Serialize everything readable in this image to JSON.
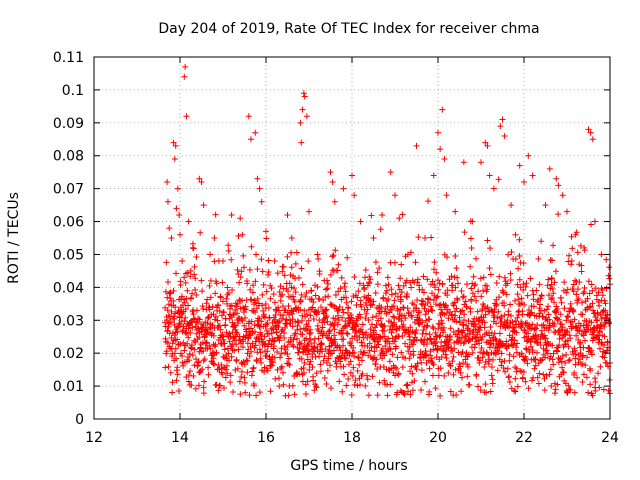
{
  "chart_data": {
    "type": "scatter",
    "title": "Day 204 of 2019, Rate Of TEC Index for receiver chma",
    "xlabel": "GPS time / hours",
    "ylabel": "ROTI / TECUs",
    "xlim": [
      12,
      24
    ],
    "ylim": [
      0,
      0.11
    ],
    "xticks": [
      "12",
      "14",
      "16",
      "18",
      "20",
      "22",
      "24"
    ],
    "yticks": [
      "0",
      "0.01",
      "0.02",
      "0.03",
      "0.04",
      "0.05",
      "0.06",
      "0.07",
      "0.08",
      "0.09",
      "0.1",
      "0.11"
    ],
    "grid": true,
    "marker": "+",
    "color": "#ff0000",
    "series": [
      {
        "name": "ROTI",
        "points": [
          [
            13.7,
            0.072
          ],
          [
            13.72,
            0.066
          ],
          [
            13.75,
            0.058
          ],
          [
            13.8,
            0.055
          ],
          [
            13.85,
            0.084
          ],
          [
            13.88,
            0.079
          ],
          [
            13.9,
            0.083
          ],
          [
            13.95,
            0.07
          ],
          [
            13.98,
            0.062
          ],
          [
            14.0,
            0.056
          ],
          [
            14.05,
            0.048
          ],
          [
            14.1,
            0.104
          ],
          [
            14.12,
            0.107
          ],
          [
            14.15,
            0.092
          ],
          [
            14.2,
            0.06
          ],
          [
            14.25,
            0.045
          ],
          [
            14.3,
            0.052
          ],
          [
            14.45,
            0.073
          ],
          [
            14.5,
            0.072
          ],
          [
            14.55,
            0.065
          ],
          [
            14.7,
            0.05
          ],
          [
            14.8,
            0.055
          ],
          [
            15.0,
            0.048
          ],
          [
            15.2,
            0.062
          ],
          [
            15.4,
            0.061
          ],
          [
            15.45,
            0.056
          ],
          [
            15.6,
            0.092
          ],
          [
            15.65,
            0.085
          ],
          [
            15.75,
            0.087
          ],
          [
            15.8,
            0.073
          ],
          [
            15.85,
            0.07
          ],
          [
            15.9,
            0.066
          ],
          [
            16.0,
            0.057
          ],
          [
            16.2,
            0.048
          ],
          [
            16.5,
            0.062
          ],
          [
            16.6,
            0.055
          ],
          [
            16.8,
            0.09
          ],
          [
            16.82,
            0.084
          ],
          [
            16.85,
            0.094
          ],
          [
            16.88,
            0.099
          ],
          [
            16.9,
            0.098
          ],
          [
            16.95,
            0.092
          ],
          [
            17.0,
            0.063
          ],
          [
            17.2,
            0.05
          ],
          [
            17.5,
            0.075
          ],
          [
            17.55,
            0.072
          ],
          [
            17.6,
            0.066
          ],
          [
            17.8,
            0.07
          ],
          [
            18.0,
            0.074
          ],
          [
            18.05,
            0.068
          ],
          [
            18.2,
            0.06
          ],
          [
            18.5,
            0.055
          ],
          [
            18.7,
            0.062
          ],
          [
            18.9,
            0.075
          ],
          [
            19.0,
            0.068
          ],
          [
            19.1,
            0.061
          ],
          [
            19.3,
            0.05
          ],
          [
            19.5,
            0.083
          ],
          [
            19.7,
            0.055
          ],
          [
            19.9,
            0.074
          ],
          [
            20.0,
            0.087
          ],
          [
            20.05,
            0.082
          ],
          [
            20.1,
            0.094
          ],
          [
            20.15,
            0.079
          ],
          [
            20.2,
            0.068
          ],
          [
            20.4,
            0.063
          ],
          [
            20.6,
            0.078
          ],
          [
            20.8,
            0.06
          ],
          [
            21.0,
            0.078
          ],
          [
            21.1,
            0.084
          ],
          [
            21.15,
            0.083
          ],
          [
            21.2,
            0.074
          ],
          [
            21.3,
            0.07
          ],
          [
            21.45,
            0.089
          ],
          [
            21.5,
            0.091
          ],
          [
            21.55,
            0.086
          ],
          [
            21.7,
            0.065
          ],
          [
            21.8,
            0.056
          ],
          [
            21.9,
            0.077
          ],
          [
            22.0,
            0.072
          ],
          [
            22.1,
            0.08
          ],
          [
            22.2,
            0.074
          ],
          [
            22.4,
            0.054
          ],
          [
            22.5,
            0.065
          ],
          [
            22.6,
            0.076
          ],
          [
            22.75,
            0.073
          ],
          [
            22.8,
            0.071
          ],
          [
            22.9,
            0.068
          ],
          [
            23.0,
            0.063
          ],
          [
            23.2,
            0.056
          ],
          [
            23.4,
            0.052
          ],
          [
            23.5,
            0.088
          ],
          [
            23.55,
            0.087
          ],
          [
            23.6,
            0.085
          ],
          [
            23.65,
            0.06
          ],
          [
            23.8,
            0.05
          ],
          [
            24.0,
            0.041
          ]
        ],
        "band": {
          "x_start": 13.65,
          "x_end": 24.0,
          "typical_center": 0.026,
          "typical_spread": 0.009,
          "floor": 0.007,
          "sample_spacing_hours": 0.0042
        }
      }
    ]
  }
}
